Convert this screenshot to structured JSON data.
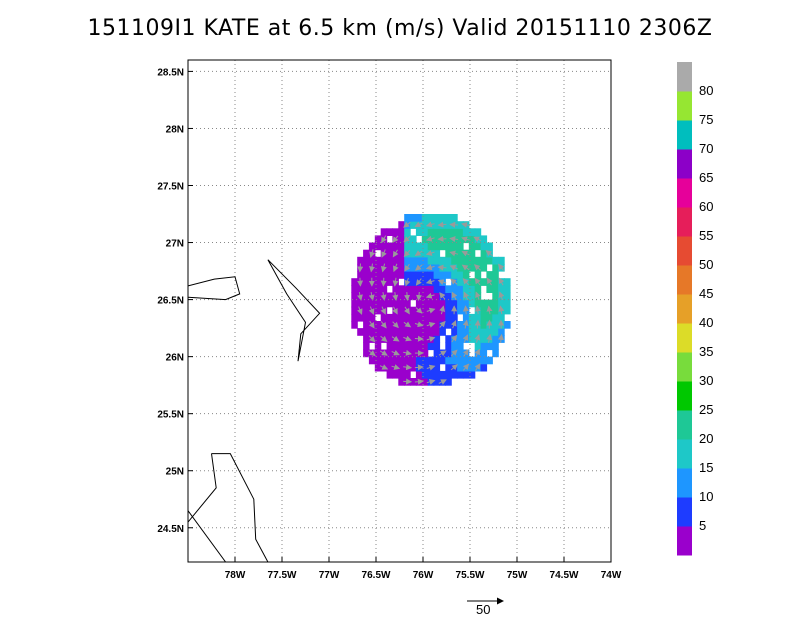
{
  "title": "151109I1 KATE at 6.5 km (m/s) Valid 20151110 2306Z",
  "map": {
    "lon_range": [
      -78.5,
      -74.0
    ],
    "lat_range": [
      24.2,
      28.6
    ],
    "lon_ticks": [
      -78,
      -77.5,
      -77,
      -76.5,
      -76,
      -75.5,
      -75,
      -74.5,
      -74
    ],
    "lon_tick_labels": [
      "78W",
      "77.5W",
      "77W",
      "76.5W",
      "76W",
      "75.5W",
      "75W",
      "74.5W",
      "74W"
    ],
    "lat_ticks": [
      24.5,
      25,
      25.5,
      26,
      26.5,
      27,
      27.5,
      28,
      28.5
    ],
    "lat_tick_labels": [
      "24.5N",
      "25N",
      "25.5N",
      "26N",
      "26.5N",
      "27N",
      "27.5N",
      "28N",
      "28.5N"
    ],
    "grid": "dotted",
    "coastlines": [
      [
        [
          -78.5,
          26.62
        ],
        [
          -78.22,
          26.68
        ],
        [
          -78.0,
          26.7
        ],
        [
          -77.95,
          26.55
        ],
        [
          -78.1,
          26.5
        ],
        [
          -78.5,
          26.52
        ]
      ],
      [
        [
          -77.65,
          26.85
        ],
        [
          -77.35,
          26.6
        ],
        [
          -77.1,
          26.38
        ],
        [
          -77.3,
          26.2
        ],
        [
          -77.33,
          25.96
        ],
        [
          -77.25,
          26.3
        ],
        [
          -77.45,
          26.55
        ],
        [
          -77.65,
          26.85
        ]
      ],
      [
        [
          -78.5,
          24.65
        ],
        [
          -78.1,
          24.2
        ]
      ],
      [
        [
          -78.25,
          25.15
        ],
        [
          -78.05,
          25.15
        ],
        [
          -77.8,
          24.75
        ],
        [
          -77.78,
          24.4
        ],
        [
          -77.65,
          24.2
        ]
      ],
      [
        [
          -78.25,
          25.15
        ],
        [
          -78.2,
          24.85
        ],
        [
          -78.5,
          24.55
        ]
      ]
    ]
  },
  "wind_field": {
    "center": [
      -75.95,
      26.45
    ],
    "radius_deg": 0.62,
    "vmax": 28
  },
  "colorbar": {
    "labels": [
      "5",
      "10",
      "15",
      "20",
      "25",
      "30",
      "35",
      "40",
      "45",
      "50",
      "55",
      "60",
      "65",
      "70",
      "75",
      "80"
    ],
    "colors": [
      "#9a00cc",
      "#1e3cff",
      "#1e96ff",
      "#1ec8c8",
      "#1ec896",
      "#00c800",
      "#78dc3c",
      "#dcdc28",
      "#e6a028",
      "#e67828",
      "#e64b32",
      "#e61e5a",
      "#e6009a",
      "#8c00c8",
      "#00bebe",
      "#96e632",
      "#aaaaaa"
    ]
  },
  "reference_vector": {
    "label": "50",
    "value": 50
  }
}
